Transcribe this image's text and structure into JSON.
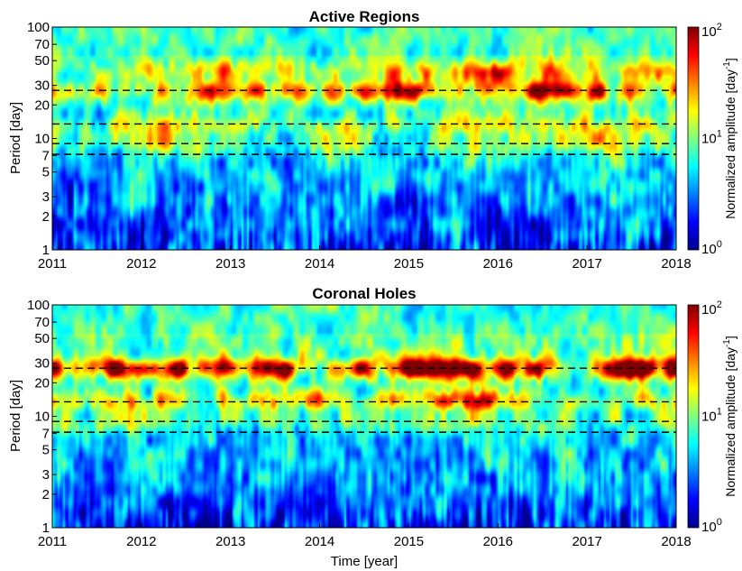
{
  "chart_data": [
    {
      "type": "heatmap",
      "title": "Active Regions",
      "xlabel": "",
      "ylabel": "Period [day]",
      "x_ticks": [
        "2011",
        "2012",
        "2013",
        "2014",
        "2015",
        "2016",
        "2017",
        "2018"
      ],
      "xlim": [
        2011,
        2018
      ],
      "y_scale": "log",
      "ylim": [
        1,
        100
      ],
      "y_ticks": [
        1,
        2,
        3,
        5,
        7,
        10,
        20,
        30,
        50,
        70,
        100
      ],
      "y_tick_labels": [
        "1",
        "2",
        "3",
        "5",
        "7",
        "10",
        "20",
        "30",
        "50",
        "70",
        "100"
      ],
      "reference_periods_day": [
        27,
        13.5,
        9,
        7.2
      ],
      "colorbar": {
        "label_main": "Normalized amplitude [day",
        "label_exp": "-1",
        "label_close": "]",
        "scale": "log",
        "range": [
          1,
          100
        ],
        "tick_labels": [
          {
            "base": "10",
            "exp": "0"
          },
          {
            "base": "10",
            "exp": "1"
          },
          {
            "base": "10",
            "exp": "2"
          }
        ],
        "colormap": "jet"
      },
      "bands": [
        {
          "period_day": 27,
          "strength": 0.55
        },
        {
          "period_day": 40,
          "strength": 0.35
        },
        {
          "period_day": 13,
          "strength": 0.25
        },
        {
          "period_day": 9,
          "strength": 0.18
        }
      ]
    },
    {
      "type": "heatmap",
      "title": "Coronal Holes",
      "xlabel": "Time [year]",
      "ylabel": "Period [day]",
      "x_ticks": [
        "2011",
        "2012",
        "2013",
        "2014",
        "2015",
        "2016",
        "2017",
        "2018"
      ],
      "xlim": [
        2011,
        2018
      ],
      "y_scale": "log",
      "ylim": [
        1,
        100
      ],
      "y_ticks": [
        1,
        2,
        3,
        5,
        7,
        10,
        20,
        30,
        50,
        70,
        100
      ],
      "y_tick_labels": [
        "1",
        "2",
        "3",
        "5",
        "7",
        "10",
        "20",
        "30",
        "50",
        "70",
        "100"
      ],
      "reference_periods_day": [
        27,
        13.5,
        9,
        7.2
      ],
      "colorbar": {
        "label_main": "Normalized amplitude [day",
        "label_exp": "-1",
        "label_close": "]",
        "scale": "log",
        "range": [
          1,
          100
        ],
        "tick_labels": [
          {
            "base": "10",
            "exp": "0"
          },
          {
            "base": "10",
            "exp": "1"
          },
          {
            "base": "10",
            "exp": "2"
          }
        ],
        "colormap": "jet"
      },
      "bands": [
        {
          "period_day": 27,
          "strength": 0.75
        },
        {
          "period_day": 13.5,
          "strength": 0.5
        },
        {
          "period_day": 9,
          "strength": 0.3
        }
      ]
    }
  ],
  "colors": {
    "jet": [
      "#00008f",
      "#0000ff",
      "#007fff",
      "#00ffff",
      "#7fff7f",
      "#ffff00",
      "#ff7f00",
      "#ff0000",
      "#7f0000"
    ],
    "dashed_line": "#000000"
  }
}
